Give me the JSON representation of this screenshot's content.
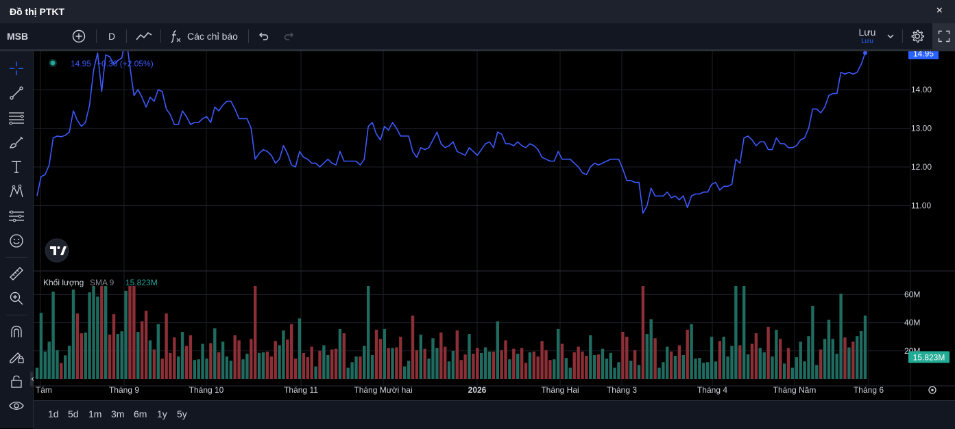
{
  "window": {
    "title": "Đồ thị PTKT",
    "close_label": "×"
  },
  "toolbar": {
    "symbol": "MSB",
    "interval": "D",
    "indicators_label": "Các chỉ báo",
    "save_label": "Lưu",
    "save_sublabel": "Lưu"
  },
  "legend": {
    "price": "14.95",
    "change": "+0.30 (+2.05%)",
    "volume_title": "Khối lượng",
    "volume_sma": "SMA 9",
    "volume_value": "15.823M"
  },
  "colors": {
    "line": "#3d5afe",
    "up": "#26a69a",
    "down": "#ef5350",
    "vol_up": "#1f6b5f",
    "vol_down": "#8c2f36",
    "grid": "#1c1f27",
    "last_price_bg": "#2962ff",
    "vol_badge_bg": "#22ab94"
  },
  "time_axis": {
    "labels": [
      "g Tám",
      "Tháng 9",
      "Tháng 10",
      "Tháng 11",
      "Tháng Mười hai",
      "2026",
      "Tháng Hai",
      "Tháng 3",
      "Tháng 4",
      "Tháng Năm",
      "Tháng 6"
    ]
  },
  "range_buttons": [
    "1d",
    "5d",
    "1m",
    "3m",
    "6m",
    "1y",
    "5y"
  ],
  "chart_data": [
    {
      "type": "line",
      "name": "price",
      "y_ticks": [
        "14.00",
        "13.00",
        "12.00",
        "11.00"
      ],
      "last_value_label": "14.95",
      "ylim": [
        10.5,
        15.5
      ],
      "values": [
        11.25,
        11.75,
        11.8,
        12.05,
        12.75,
        12.8,
        12.78,
        12.82,
        12.9,
        13.45,
        13.2,
        13.05,
        13.15,
        13.6,
        14.5,
        14.95,
        13.95,
        14.9,
        14.85,
        14.65,
        14.75,
        14.82,
        15.4,
        14.6,
        13.85,
        14.0,
        13.8,
        13.55,
        13.8,
        13.7,
        14.0,
        13.95,
        13.5,
        13.35,
        13.1,
        13.1,
        13.45,
        13.3,
        13.1,
        13.15,
        13.15,
        13.25,
        13.3,
        13.15,
        13.55,
        13.45,
        13.6,
        13.7,
        13.7,
        13.5,
        13.25,
        13.25,
        13.25,
        13.0,
        12.2,
        12.35,
        12.45,
        12.4,
        12.3,
        12.1,
        12.2,
        12.55,
        12.35,
        12.05,
        12.0,
        12.4,
        12.25,
        12.2,
        12.1,
        12.1,
        12.0,
        12.1,
        12.2,
        12.1,
        12.05,
        12.4,
        12.15,
        12.15,
        12.15,
        12.15,
        12.05,
        12.2,
        13.05,
        13.15,
        12.85,
        12.7,
        13.05,
        12.95,
        13.15,
        13.0,
        12.8,
        12.8,
        12.8,
        12.4,
        12.25,
        12.5,
        12.45,
        12.5,
        12.7,
        12.9,
        12.6,
        12.5,
        12.55,
        12.65,
        12.4,
        12.35,
        12.3,
        12.5,
        12.4,
        12.3,
        12.45,
        12.6,
        12.65,
        12.5,
        12.9,
        12.85,
        12.6,
        12.6,
        12.55,
        12.65,
        12.55,
        12.5,
        12.6,
        12.55,
        12.45,
        12.25,
        12.2,
        12.15,
        12.15,
        12.4,
        12.2,
        12.2,
        12.2,
        12.1,
        12.0,
        11.85,
        11.8,
        12.0,
        12.1,
        12.05,
        12.1,
        12.15,
        12.2,
        12.2,
        12.2,
        11.95,
        11.65,
        11.65,
        11.6,
        11.6,
        10.8,
        11.0,
        11.45,
        11.25,
        11.25,
        11.25,
        11.35,
        11.2,
        11.25,
        11.15,
        11.25,
        10.95,
        11.25,
        11.3,
        11.3,
        11.35,
        11.35,
        11.55,
        11.6,
        11.4,
        11.5,
        11.5,
        11.55,
        12.2,
        12.1,
        12.75,
        12.8,
        12.7,
        12.55,
        12.65,
        12.65,
        12.45,
        12.45,
        12.75,
        12.6,
        12.6,
        12.5,
        12.5,
        12.55,
        12.7,
        12.75,
        13.0,
        13.5,
        13.5,
        13.4,
        13.55,
        13.85,
        13.9,
        13.9,
        14.45,
        14.4,
        14.45,
        14.4,
        14.45,
        14.65,
        14.95
      ]
    },
    {
      "type": "bar",
      "name": "volume",
      "y_ticks": [
        "60M",
        "40M",
        "20M"
      ],
      "last_value_label": "15.823M",
      "ylim": [
        0,
        75
      ]
    }
  ]
}
